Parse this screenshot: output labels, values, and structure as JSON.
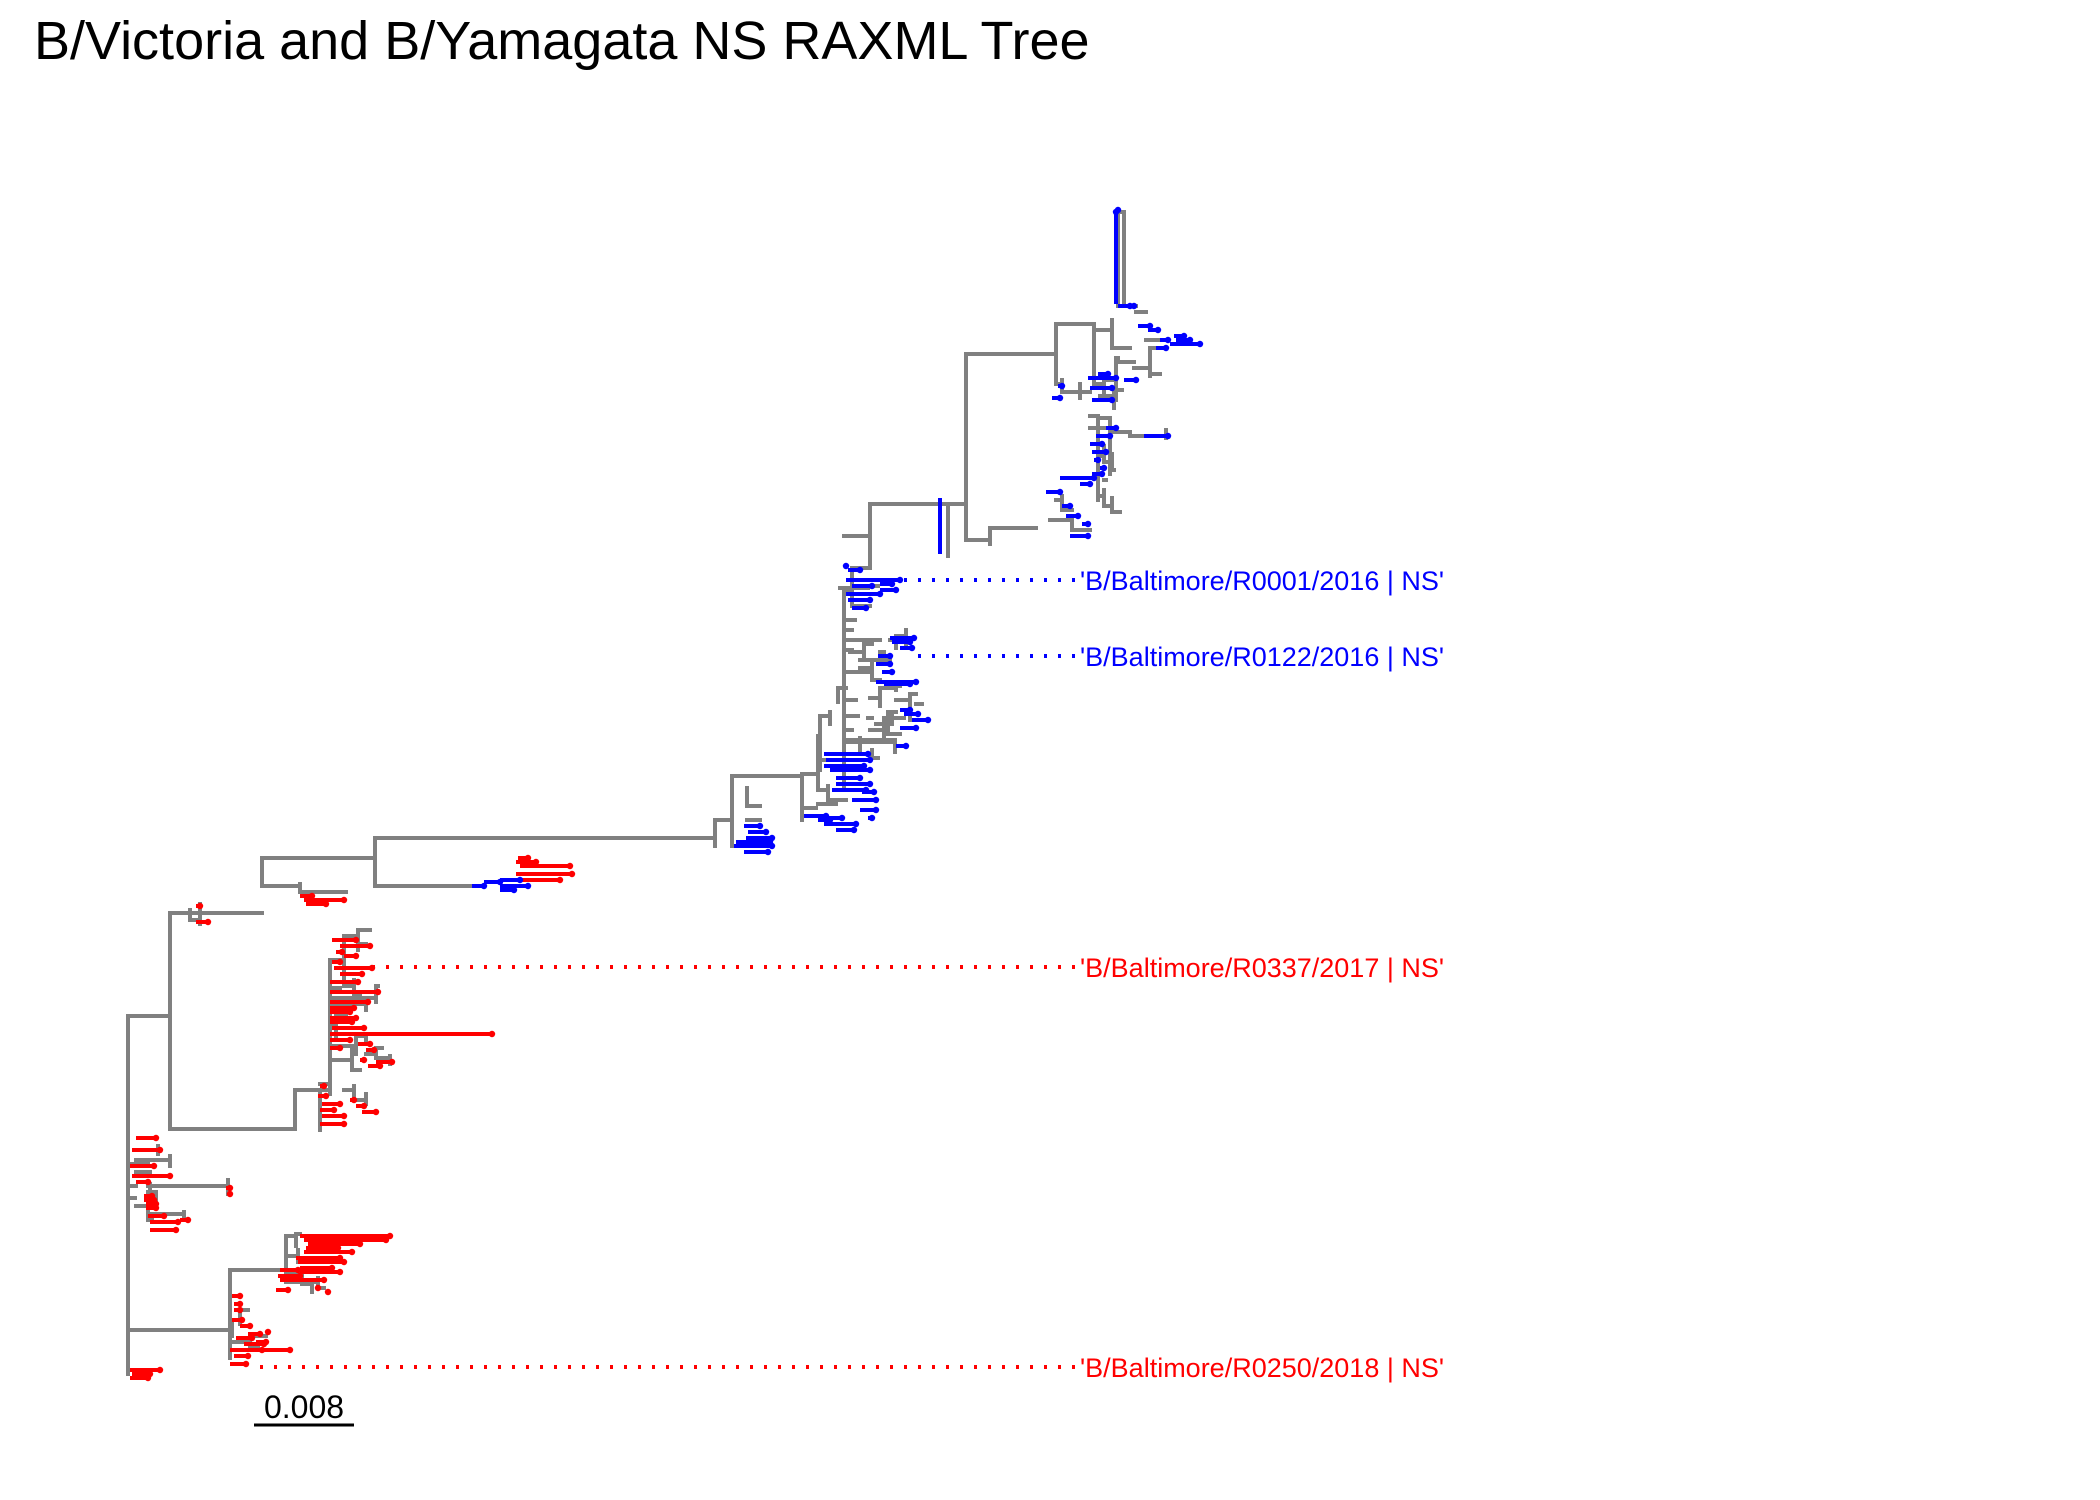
{
  "title": "B/Victoria and B/Yamagata NS RAXML Tree",
  "scale_bar": {
    "label": "0.008"
  },
  "colors": {
    "backbone": "#808080",
    "yamagata": "#0000ff",
    "victoria": "#ff0000",
    "scale": "#000000"
  },
  "highlighted_tips": [
    {
      "label": "'B/Baltimore/R0001/2016 | NS'",
      "clade": "yamagata"
    },
    {
      "label": "'B/Baltimore/R0122/2016 | NS'",
      "clade": "yamagata"
    },
    {
      "label": "'B/Baltimore/R0337/2017 | NS'",
      "clade": "victoria"
    },
    {
      "label": "'B/Baltimore/R0250/2018 | NS'",
      "clade": "victoria"
    }
  ]
}
